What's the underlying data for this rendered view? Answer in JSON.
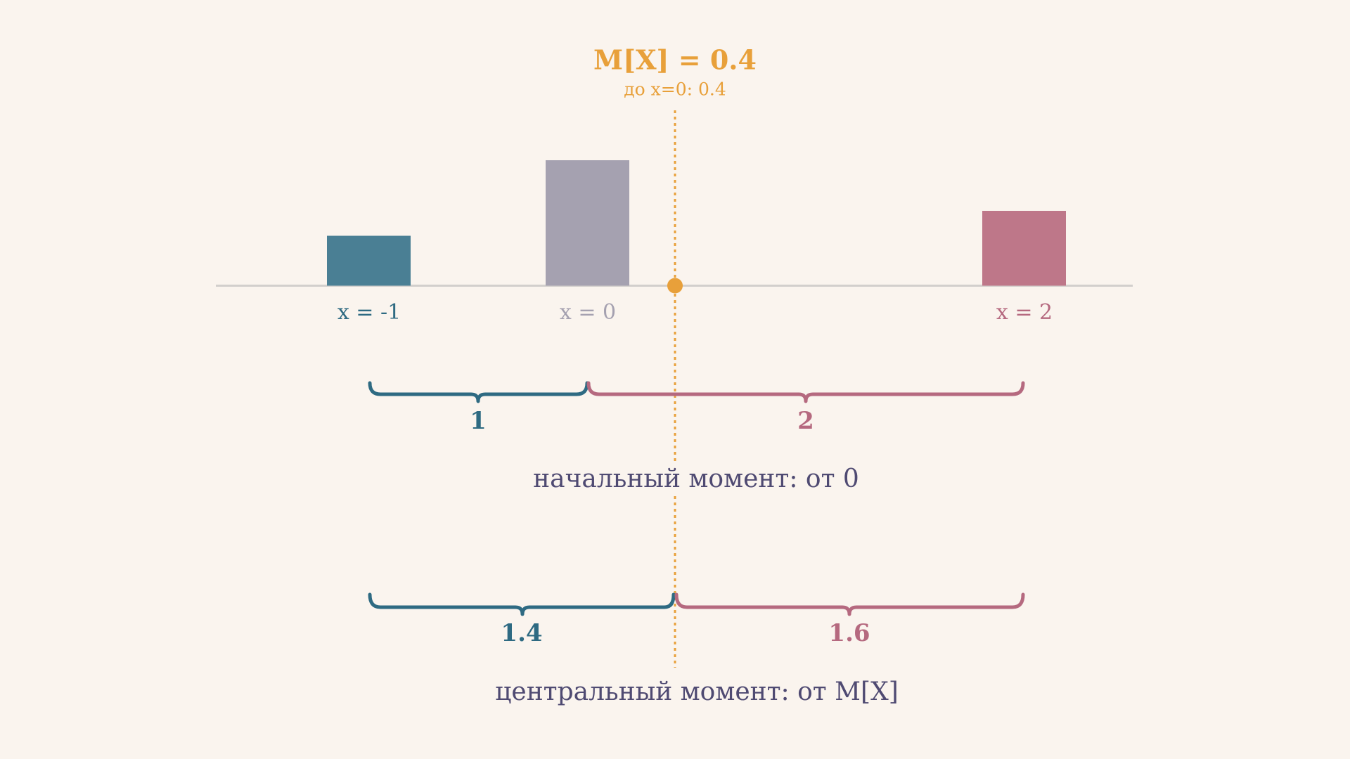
{
  "header": {
    "title": "M[X] = 0.4",
    "subtitle": "до x=0: 0.4"
  },
  "points": [
    "x = -1",
    "x = 0",
    "x = 2"
  ],
  "raw_moment": {
    "distances": [
      "1",
      "2"
    ],
    "caption": "начальный момент: от 0"
  },
  "central_moment": {
    "distances": [
      "1.4",
      "1.6"
    ],
    "caption": "центральный момент: от M[X]"
  }
}
